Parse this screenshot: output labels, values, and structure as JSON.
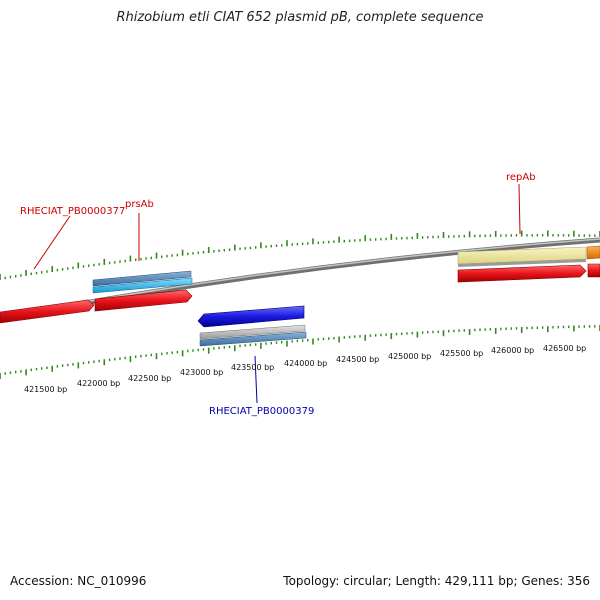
{
  "title": "Rhizobium etli CIAT 652 plasmid pB, complete sequence",
  "footer": {
    "accession": "Accession: NC_010996",
    "summary": "Topology: circular; Length: 429,111 bp; Genes: 356"
  },
  "colors": {
    "backbone": "#8a8a8a",
    "tick": "#2e8b1a",
    "gene_forward": "#e8141c",
    "gene_reverse": "#1a1ae0",
    "cds_cyan": "#2ab8ea",
    "cds_steel": "#4f86b6",
    "cds_grey": "#b8b8b8",
    "cds_yellow": "#ece69e",
    "cds_orange": "#f08a1e",
    "label_red": "#cc0000",
    "label_blue": "#0000aa"
  },
  "scale": {
    "tick_labels": [
      "421500 bp",
      "422000 bp",
      "422500 bp",
      "423000 bp",
      "423500 bp",
      "424000 bp",
      "424500 bp",
      "425000 bp",
      "425500 bp",
      "426000 bp",
      "426500 bp"
    ]
  },
  "features": [
    {
      "name": "RHECIAT_PB0000377",
      "strand": "forward"
    },
    {
      "name": "prsAb",
      "strand": "forward"
    },
    {
      "name": "repAb",
      "strand": "forward"
    },
    {
      "name": "RHECIAT_PB0000379",
      "strand": "reverse"
    }
  ]
}
